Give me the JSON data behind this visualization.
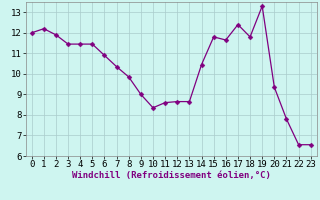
{
  "x": [
    0,
    1,
    2,
    3,
    4,
    5,
    6,
    7,
    8,
    9,
    10,
    11,
    12,
    13,
    14,
    15,
    16,
    17,
    18,
    19,
    20,
    21,
    22,
    23
  ],
  "y": [
    12.0,
    12.2,
    11.9,
    11.45,
    11.45,
    11.45,
    10.9,
    10.35,
    9.85,
    9.0,
    8.35,
    8.6,
    8.65,
    8.65,
    10.45,
    11.8,
    11.65,
    12.4,
    11.8,
    13.3,
    9.35,
    7.8,
    6.55,
    6.55
  ],
  "line_color": "#800080",
  "marker": "D",
  "marker_size": 2.5,
  "bg_color": "#cef5f0",
  "grid_color": "#aacccc",
  "xlabel": "Windchill (Refroidissement éolien,°C)",
  "xlim_min": -0.5,
  "xlim_max": 23.5,
  "ylim_min": 6.0,
  "ylim_max": 13.5,
  "yticks": [
    6,
    7,
    8,
    9,
    10,
    11,
    12,
    13
  ],
  "xticks": [
    0,
    1,
    2,
    3,
    4,
    5,
    6,
    7,
    8,
    9,
    10,
    11,
    12,
    13,
    14,
    15,
    16,
    17,
    18,
    19,
    20,
    21,
    22,
    23
  ],
  "xlabel_color": "#800080",
  "axis_label_fontsize": 6.5,
  "tick_fontsize": 6.5,
  "linewidth": 0.9
}
